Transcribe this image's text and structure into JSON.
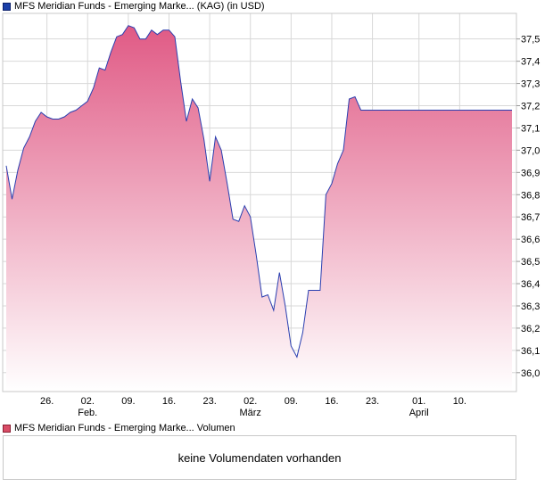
{
  "legend": {
    "price_series": "MFS Meridian Funds - Emerging Marke... (KAG) (in USD)",
    "volume_series": "MFS Meridian Funds - Emerging Marke... Volumen"
  },
  "volume_panel": {
    "message": "keine Volumendaten vorhanden"
  },
  "colors": {
    "line": "#2a3fb0",
    "fill_top": "#e05a85",
    "fill_bottom": "#ffffff",
    "grid": "#d8d8d8"
  },
  "chart_data": {
    "type": "area",
    "title": "",
    "xlabel": "",
    "ylabel": "",
    "y_axis_position": "right",
    "grid": true,
    "ylim": [
      35.915,
      37.615
    ],
    "y_ticks": [
      36.0,
      36.1,
      36.2,
      36.3,
      36.4,
      36.5,
      36.6,
      36.7,
      36.8,
      36.9,
      37.0,
      37.1,
      37.2,
      37.3,
      37.4,
      37.5
    ],
    "y_tick_labels": [
      "36,0",
      "36,1",
      "36,2",
      "36,3",
      "36,4",
      "36,5",
      "36,6",
      "36,7",
      "36,8",
      "36,9",
      "37,0",
      "37,1",
      "37,2",
      "37,3",
      "37,4",
      "37,5"
    ],
    "xlim": [
      "2024-01-19",
      "2024-04-15"
    ],
    "x_ticks": [
      {
        "date": "2024-01-26",
        "label": "26."
      },
      {
        "date": "2024-02-02",
        "label": "02.",
        "sublabel": "Feb."
      },
      {
        "date": "2024-02-09",
        "label": "09."
      },
      {
        "date": "2024-02-16",
        "label": "16."
      },
      {
        "date": "2024-02-23",
        "label": "23."
      },
      {
        "date": "2024-03-01",
        "label": "02.",
        "sublabel": "März"
      },
      {
        "date": "2024-03-08",
        "label": "09."
      },
      {
        "date": "2024-03-15",
        "label": "16."
      },
      {
        "date": "2024-03-22",
        "label": "23."
      },
      {
        "date": "2024-03-30",
        "label": "01.",
        "sublabel": "April"
      },
      {
        "date": "2024-04-06",
        "label": "10."
      }
    ],
    "series": [
      {
        "x": [
          "2024-01-19",
          "2024-01-20",
          "2024-01-21",
          "2024-01-22",
          "2024-01-23",
          "2024-01-24",
          "2024-01-25",
          "2024-01-26",
          "2024-01-27",
          "2024-01-28",
          "2024-01-29",
          "2024-01-30",
          "2024-01-31",
          "2024-02-01",
          "2024-02-02",
          "2024-02-03",
          "2024-02-04",
          "2024-02-05",
          "2024-02-06",
          "2024-02-07",
          "2024-02-08",
          "2024-02-09",
          "2024-02-10",
          "2024-02-11",
          "2024-02-12",
          "2024-02-13",
          "2024-02-14",
          "2024-02-15",
          "2024-02-16",
          "2024-02-17",
          "2024-02-18",
          "2024-02-19",
          "2024-02-20",
          "2024-02-21",
          "2024-02-22",
          "2024-02-23",
          "2024-02-24",
          "2024-02-25",
          "2024-02-26",
          "2024-02-27",
          "2024-02-28",
          "2024-02-29",
          "2024-03-01",
          "2024-03-02",
          "2024-03-03",
          "2024-03-04",
          "2024-03-05",
          "2024-03-06",
          "2024-03-07",
          "2024-03-08",
          "2024-03-09",
          "2024-03-10",
          "2024-03-11",
          "2024-03-12",
          "2024-03-13",
          "2024-03-14",
          "2024-03-15",
          "2024-03-16",
          "2024-03-17",
          "2024-03-18",
          "2024-03-19",
          "2024-03-20",
          "2024-03-21",
          "2024-03-22",
          "2024-03-23",
          "2024-03-24",
          "2024-03-25",
          "2024-03-26",
          "2024-03-27",
          "2024-03-28",
          "2024-03-29",
          "2024-03-30",
          "2024-03-31",
          "2024-04-01",
          "2024-04-02",
          "2024-04-03",
          "2024-04-04",
          "2024-04-05",
          "2024-04-06",
          "2024-04-07",
          "2024-04-08",
          "2024-04-09",
          "2024-04-10",
          "2024-04-11",
          "2024-04-12",
          "2024-04-13",
          "2024-04-14",
          "2024-04-15"
        ],
        "values": [
          36.93,
          36.78,
          36.91,
          37.01,
          37.06,
          37.13,
          37.17,
          37.15,
          37.14,
          37.14,
          37.15,
          37.17,
          37.18,
          37.2,
          37.22,
          37.28,
          37.37,
          37.36,
          37.44,
          37.51,
          37.52,
          37.56,
          37.55,
          37.5,
          37.5,
          37.54,
          37.52,
          37.54,
          37.54,
          37.51,
          37.31,
          37.13,
          37.23,
          37.19,
          37.05,
          36.86,
          37.06,
          37.0,
          36.85,
          36.69,
          36.68,
          36.75,
          36.7,
          36.53,
          36.34,
          36.35,
          36.28,
          36.45,
          36.3,
          36.12,
          36.07,
          36.18,
          36.37,
          36.37,
          36.37,
          36.8,
          36.85,
          36.94,
          37.0,
          37.23,
          37.24,
          37.18,
          37.18,
          37.18,
          37.18,
          37.18,
          37.18,
          37.18,
          37.18,
          37.18,
          37.18,
          37.18,
          37.18,
          37.18,
          37.18,
          37.18,
          37.18,
          37.18,
          37.18,
          37.18,
          37.18,
          37.18,
          37.18,
          37.18,
          37.18,
          37.18,
          37.18,
          37.18
        ]
      }
    ]
  }
}
